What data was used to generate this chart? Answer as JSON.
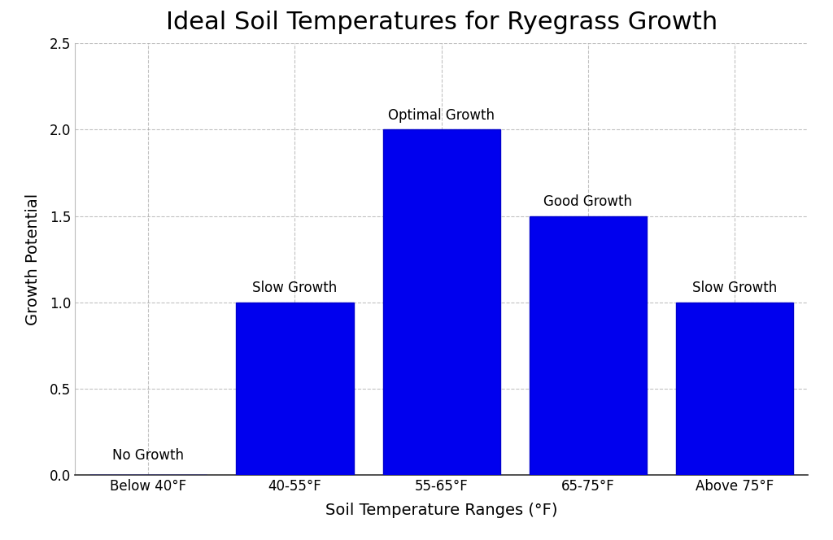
{
  "title": "Ideal Soil Temperatures for Ryegrass Growth",
  "xlabel": "Soil Temperature Ranges (°F)",
  "ylabel": "Growth Potential",
  "categories": [
    "Below 40°F",
    "40-55°F",
    "55-65°F",
    "65-75°F",
    "Above 75°F"
  ],
  "values": [
    0,
    1.0,
    2.0,
    1.5,
    1.0
  ],
  "labels": [
    "No Growth",
    "Slow Growth",
    "Optimal Growth",
    "Good Growth",
    "Slow Growth"
  ],
  "bar_color": "#0000ee",
  "bar_edgecolor": "#0000cc",
  "bar_width": 0.8,
  "ylim": [
    0,
    2.5
  ],
  "yticks": [
    0.0,
    0.5,
    1.0,
    1.5,
    2.0,
    2.5
  ],
  "grid_color": "#999999",
  "grid_linestyle": "--",
  "grid_alpha": 0.6,
  "title_fontsize": 22,
  "axis_label_fontsize": 14,
  "tick_label_fontsize": 12,
  "annotation_fontsize": 12,
  "background_color": "#ffffff",
  "figsize": [
    10.24,
    6.64
  ],
  "dpi": 100
}
